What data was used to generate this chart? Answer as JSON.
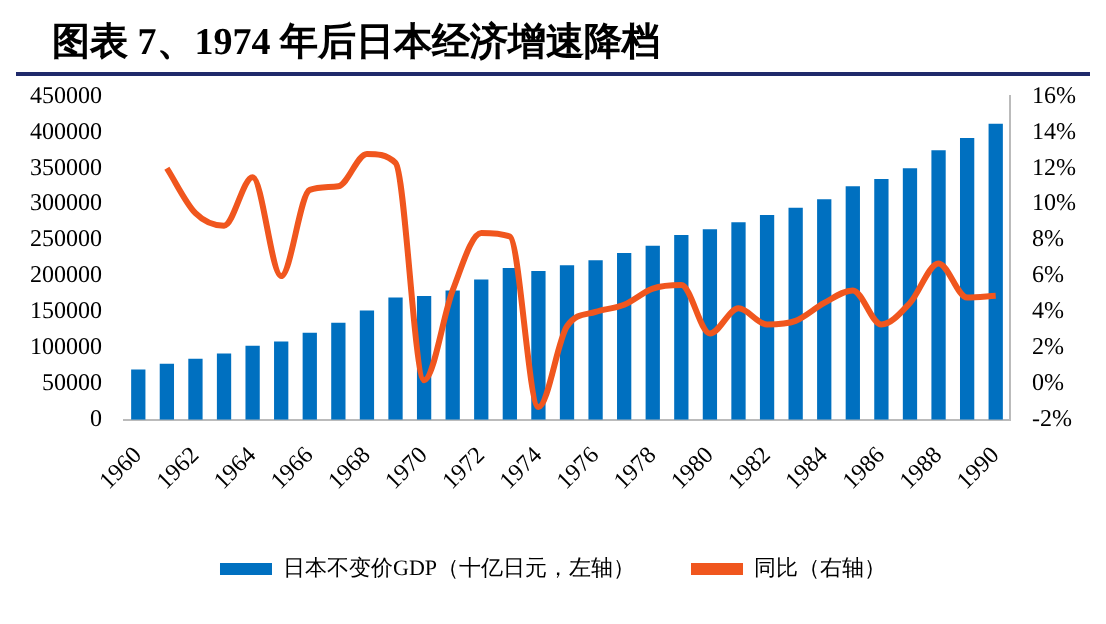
{
  "chart_data": {
    "type": "bar",
    "title": "图表 7、1974 年后日本经济增速降档",
    "categories": [
      "1960",
      null,
      "1962",
      null,
      "1964",
      null,
      "1966",
      null,
      "1968",
      null,
      "1970",
      null,
      "1972",
      null,
      "1974",
      null,
      "1976",
      null,
      "1978",
      null,
      "1980",
      null,
      "1982",
      null,
      "1984",
      null,
      "1986",
      null,
      "1988",
      null,
      "1990"
    ],
    "series": [
      {
        "name": "日本不变价GDP（十亿日元，左轴）",
        "color": "#0070c0",
        "values": [
          70000,
          78000,
          85000,
          92000,
          103000,
          109000,
          121000,
          135000,
          152000,
          170000,
          172000,
          180000,
          195000,
          211000,
          207000,
          215000,
          222000,
          232000,
          242000,
          257000,
          265000,
          275000,
          285000,
          295000,
          307000,
          325000,
          335000,
          350000,
          375000,
          392000,
          412000
        ]
      },
      {
        "name": "同比（右轴）",
        "type": "line",
        "axis": "y2",
        "color": "#f0561e",
        "values": [
          null,
          12,
          9.5,
          8.8,
          11.5,
          6,
          10.8,
          11,
          12.8,
          12.3,
          0.2,
          5.2,
          8.4,
          8.2,
          -1.3,
          3.2,
          4,
          4.4,
          5.3,
          5.5,
          2.8,
          4.2,
          3.3,
          3.5,
          4.5,
          5.2,
          3.3,
          4.5,
          6.7,
          4.8,
          4.9
        ]
      }
    ],
    "ylim": [
      0,
      450000
    ],
    "yticks": [
      0,
      50000,
      100000,
      150000,
      200000,
      250000,
      300000,
      350000,
      400000,
      450000
    ],
    "y2lim": [
      -2,
      16
    ],
    "y2ticks": [
      {
        "value": -2,
        "label": "-2%"
      },
      {
        "value": 0,
        "label": "0%"
      },
      {
        "value": 2,
        "label": "2%"
      },
      {
        "value": 4,
        "label": "4%"
      },
      {
        "value": 6,
        "label": "6%"
      },
      {
        "value": 8,
        "label": "8%"
      },
      {
        "value": 10,
        "label": "10%"
      },
      {
        "value": 12,
        "label": "12%"
      },
      {
        "value": 14,
        "label": "14%"
      },
      {
        "value": 16,
        "label": "16%"
      }
    ],
    "grid": false,
    "legend": "bottom",
    "marker": "none"
  }
}
